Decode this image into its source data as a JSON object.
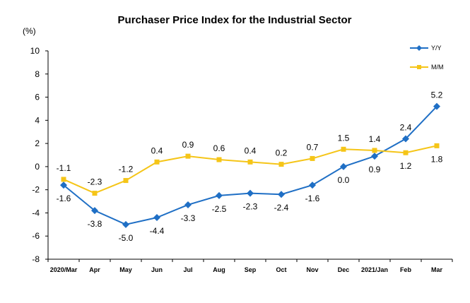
{
  "chart_data": {
    "type": "line",
    "title": "Purchaser Price Index for the Industrial  Sector",
    "unit_label": "(%)",
    "xlabel": "",
    "ylabel": "",
    "ylim": [
      -8,
      10
    ],
    "yticks": [
      "-8",
      "-6",
      "-4",
      "-2",
      "0",
      "2",
      "4",
      "6",
      "8",
      "10"
    ],
    "grid": false,
    "legend_position": "top-right",
    "categories": [
      "2020/Mar",
      "Apr",
      "May",
      "Jun",
      "Jul",
      "Aug",
      "Sep",
      "Oct",
      "Nov",
      "Dec",
      "2021/Jan",
      "Feb",
      "Mar"
    ],
    "series": [
      {
        "name": "Y/Y",
        "color": "#1F6FC5",
        "marker": "diamond",
        "values": [
          -1.6,
          -3.8,
          -5.0,
          -4.4,
          -3.3,
          -2.5,
          -2.3,
          -2.4,
          -1.6,
          0.0,
          0.9,
          2.4,
          5.2
        ],
        "labels": [
          "-1.6",
          "-3.8",
          "-5.0",
          "-4.4",
          "-3.3",
          "-2.5",
          "-2.3",
          "-2.4",
          "-1.6",
          "0.0",
          "0.9",
          "2.4",
          "5.2"
        ]
      },
      {
        "name": "M/M",
        "color": "#F5C518",
        "marker": "square",
        "values": [
          -1.1,
          -2.3,
          -1.2,
          0.4,
          0.9,
          0.6,
          0.4,
          0.2,
          0.7,
          1.5,
          1.4,
          1.2,
          1.8
        ],
        "labels": [
          "-1.1",
          "-2.3",
          "-1.2",
          "0.4",
          "0.9",
          "0.6",
          "0.4",
          "0.2",
          "0.7",
          "1.5",
          "1.4",
          "1.2",
          "1.8"
        ]
      }
    ]
  }
}
